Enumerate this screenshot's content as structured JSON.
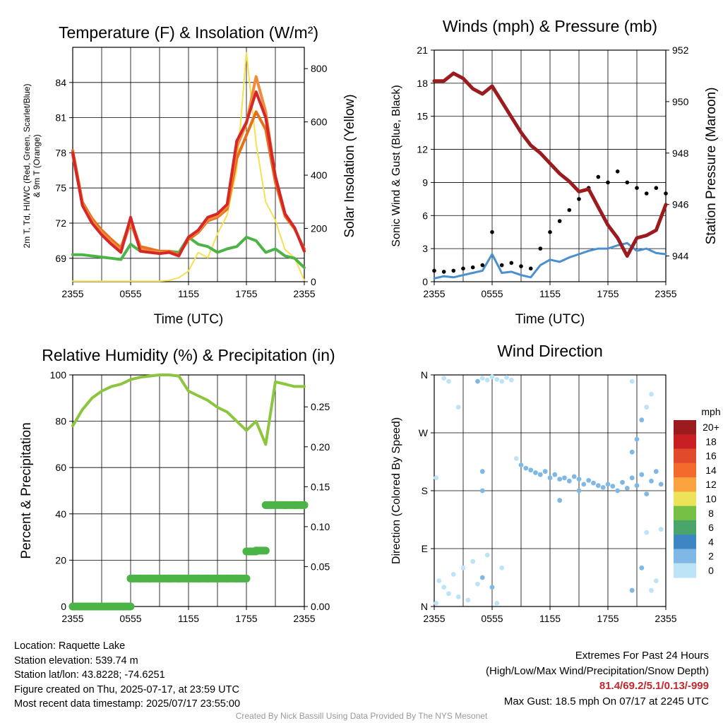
{
  "colors": {
    "temp": "#d62728",
    "dew": "#4cb447",
    "heat_index": "#f28a3c",
    "nine_m": "#e8701a",
    "solar": "#f5e050",
    "pressure": "#9b1b1e",
    "wind": "#4a8fd0",
    "gust": "#000000",
    "rh": "#8cc63f",
    "precip": "#4cb447"
  },
  "panels": {
    "temp": {
      "title": "Temperature (F) & Insolation (W/m²)",
      "ylabel_left": "2m T, Td, HI/WC (Red, Green, Scarlet/Blue)",
      "ylabel_left2": "& 9m T (Orange)",
      "ylabel_right": "Solar Insolation (Yellow)",
      "xlabel": "Time (UTC)"
    },
    "wind": {
      "title": "Winds (mph) & Pressure (mb)",
      "ylabel_left": "Sonic Wind & Gust (Blue, Black)",
      "ylabel_right": "Station Pressure (Maroon)",
      "xlabel": "Time (UTC)"
    },
    "rh": {
      "title": "Relative Humidity (%) & Precipitation (in)",
      "ylabel_left": "Percent & Precipitation"
    },
    "dir": {
      "title": "Wind Direction",
      "ylabel_left": "Direction (Colored By Speed)"
    }
  },
  "colorbar": {
    "title": "mph",
    "labels": [
      "20+",
      "18",
      "16",
      "14",
      "12",
      "10",
      "8",
      "6",
      "4",
      "2",
      "0"
    ],
    "colors": [
      "#9b1b1e",
      "#c81f25",
      "#e04b2c",
      "#f26a2e",
      "#f9a23e",
      "#ede35a",
      "#77c046",
      "#4aa56a",
      "#3d86c4",
      "#7fb8e5",
      "#bde3f7"
    ]
  },
  "footer": {
    "location": "Location: Raquette Lake",
    "elevation": "Station elevation: 539.74 m",
    "latlon": "Station lat/lon: 43.8228; -74.6251",
    "created": "Figure created on Thu, 2025-07-17, at 23:59 UTC",
    "recent": "Most recent data timestamp: 2025/07/17 23:55:00",
    "extremes_title": "Extremes For Past 24 Hours",
    "extremes_sub": "(High/Low/Max Wind/Precipitation/Snow Depth)",
    "extremes_values": "81.4/69.2/5.1/0.13/-999",
    "max_gust": "Max Gust: 18.5 mph On 07/17 at 2245 UTC",
    "credit": "Created By Nick Bassill Using Data Provided By The NYS Mesonet"
  },
  "chart_data": [
    {
      "type": "line",
      "title": "Temperature (F) & Insolation (W/m²)",
      "xlabel": "Time (UTC)",
      "xticks": [
        "2355",
        "0555",
        "1155",
        "1755",
        "2355"
      ],
      "x": [
        0,
        1,
        2,
        3,
        4,
        5,
        6,
        7,
        8,
        9,
        10,
        11,
        12,
        13,
        14,
        15,
        16,
        17,
        18,
        19,
        20,
        21,
        22,
        23,
        24
      ],
      "xlim": [
        0,
        24
      ],
      "ylim": [
        67,
        87
      ],
      "yticks": [
        69,
        72,
        75,
        78,
        81,
        84
      ],
      "y2lim": [
        0,
        880
      ],
      "y2ticks": [
        0,
        200,
        400,
        600,
        800
      ],
      "series": [
        {
          "name": "2m T",
          "axis": "left",
          "color": "#d62728",
          "values": [
            78.0,
            73.5,
            72.0,
            71.0,
            70.2,
            69.5,
            72.5,
            69.6,
            69.5,
            69.4,
            69.5,
            69.2,
            70.8,
            71.4,
            72.5,
            72.8,
            73.6,
            79.0,
            80.6,
            83.2,
            81.0,
            76.0,
            72.8,
            71.6,
            69.6
          ]
        },
        {
          "name": "9m T",
          "axis": "left",
          "color": "#e8701a",
          "values": [
            78.2,
            73.8,
            72.4,
            71.4,
            70.6,
            69.9,
            72.3,
            70.0,
            69.8,
            69.6,
            69.6,
            69.3,
            70.6,
            71.2,
            72.2,
            72.5,
            73.2,
            77.5,
            79.5,
            81.5,
            80.0,
            75.5,
            72.6,
            71.5,
            69.8
          ]
        },
        {
          "name": "Td",
          "axis": "left",
          "color": "#4cb447",
          "values": [
            69.3,
            69.3,
            69.2,
            69.1,
            69.0,
            68.9,
            70.2,
            69.6,
            69.5,
            69.5,
            69.6,
            69.5,
            70.8,
            70.2,
            70.0,
            69.5,
            69.8,
            70.0,
            70.8,
            70.5,
            69.5,
            69.8,
            69.2,
            69.0,
            68.2
          ]
        },
        {
          "name": "HI",
          "axis": "left",
          "color": "#f28a3c",
          "values": [
            77.8,
            73.6,
            72.2,
            71.2,
            70.4,
            69.7,
            72.0,
            69.8,
            69.6,
            69.5,
            69.5,
            69.2,
            70.8,
            71.3,
            72.3,
            72.6,
            73.4,
            78.5,
            80.5,
            84.5,
            81.5,
            76.0,
            72.8,
            71.6,
            69.6
          ]
        },
        {
          "name": "Solar",
          "axis": "right",
          "color": "#f5e050",
          "values": [
            2,
            2,
            2,
            2,
            2,
            2,
            2,
            2,
            2,
            2,
            5,
            15,
            40,
            110,
            90,
            180,
            250,
            420,
            860,
            520,
            300,
            230,
            120,
            90,
            5
          ]
        }
      ]
    },
    {
      "type": "line",
      "title": "Winds (mph) & Pressure (mb)",
      "xlabel": "Time (UTC)",
      "xticks": [
        "2355",
        "0555",
        "1155",
        "1755",
        "2355"
      ],
      "x": [
        0,
        1,
        2,
        3,
        4,
        5,
        6,
        7,
        8,
        9,
        10,
        11,
        12,
        13,
        14,
        15,
        16,
        17,
        18,
        19,
        20,
        21,
        22,
        23,
        24
      ],
      "xlim": [
        0,
        24
      ],
      "ylim": [
        0,
        21
      ],
      "yticks": [
        0,
        3,
        6,
        9,
        12,
        15,
        18,
        21
      ],
      "y2lim": [
        943.0,
        952.0
      ],
      "y2ticks": [
        944,
        946,
        948,
        950,
        952
      ],
      "series": [
        {
          "name": "Sonic Wind",
          "axis": "left",
          "color": "#4a8fd0",
          "values": [
            0.3,
            0.5,
            0.4,
            0.6,
            0.8,
            1.0,
            2.5,
            0.8,
            0.9,
            0.6,
            0.4,
            1.5,
            2.0,
            1.8,
            2.2,
            2.5,
            2.8,
            3.0,
            3.0,
            3.3,
            3.5,
            2.8,
            3.0,
            2.6,
            2.5
          ]
        },
        {
          "name": "Gust",
          "axis": "left",
          "color": "#000000",
          "marker": "dot",
          "values": [
            1.0,
            0.9,
            1.0,
            1.2,
            1.3,
            1.5,
            4.5,
            1.5,
            1.7,
            1.4,
            1.2,
            3.0,
            4.5,
            5.5,
            6.5,
            7.5,
            8.5,
            9.5,
            9.0,
            10.0,
            9.0,
            8.5,
            8.0,
            8.5,
            8.0
          ]
        },
        {
          "name": "Station Pressure",
          "axis": "right",
          "color": "#9b1b1e",
          "values": [
            950.8,
            950.8,
            951.1,
            950.9,
            950.5,
            950.3,
            950.6,
            950.0,
            949.4,
            948.8,
            948.3,
            948.0,
            947.6,
            947.2,
            946.9,
            946.5,
            946.6,
            945.9,
            945.2,
            944.7,
            944.0,
            944.7,
            944.8,
            945.0,
            946.0
          ]
        }
      ]
    },
    {
      "type": "line",
      "title": "Relative Humidity (%) & Precipitation (in)",
      "xticks": [
        "2355",
        "0555",
        "1155",
        "1755",
        "2355"
      ],
      "x": [
        0,
        1,
        2,
        3,
        4,
        5,
        6,
        7,
        8,
        9,
        10,
        11,
        12,
        13,
        14,
        15,
        16,
        17,
        18,
        19,
        20,
        21,
        22,
        23,
        24
      ],
      "xlim": [
        0,
        24
      ],
      "ylim": [
        0,
        100
      ],
      "yticks": [
        0,
        20,
        40,
        60,
        80,
        100
      ],
      "y2lim": [
        0,
        0.29
      ],
      "y2ticks": [
        0.0,
        0.05,
        0.1,
        0.15,
        0.2,
        0.25
      ],
      "y2ticklabels": [
        "0.00",
        "0.05",
        "0.10",
        "0.15",
        "0.20",
        "0.25"
      ],
      "series": [
        {
          "name": "RH",
          "axis": "left",
          "color": "#8cc63f",
          "values": [
            78,
            85,
            90,
            93,
            95,
            96,
            98,
            99,
            99.5,
            100,
            100,
            99.5,
            93,
            91,
            89,
            86,
            84,
            80,
            76,
            80,
            70,
            97,
            96,
            95,
            95
          ]
        },
        {
          "name": "Precipitation",
          "axis": "right",
          "color": "#4cb447",
          "marker": "dot",
          "values": [
            0.0,
            0.0,
            0.0,
            0.0,
            0.0,
            0.0,
            0.035,
            0.035,
            0.035,
            0.035,
            0.035,
            0.035,
            0.035,
            0.035,
            0.035,
            0.035,
            0.035,
            0.035,
            0.069,
            0.07,
            0.127,
            0.127,
            0.127,
            0.127,
            0.127
          ]
        }
      ]
    },
    {
      "type": "scatter",
      "title": "Wind Direction",
      "xticks": [
        "2355",
        "0555",
        "1155",
        "1755",
        "2355"
      ],
      "xlim": [
        0,
        24
      ],
      "ylim": [
        0,
        360
      ],
      "yticks": [
        "N",
        "E",
        "S",
        "W",
        "N"
      ],
      "points": [
        {
          "x": 0.2,
          "dir": 5,
          "speed": 1
        },
        {
          "x": 0.5,
          "dir": 40,
          "speed": 1
        },
        {
          "x": 1.0,
          "dir": 30,
          "speed": 1
        },
        {
          "x": 1.5,
          "dir": 20,
          "speed": 1
        },
        {
          "x": 2.0,
          "dir": 50,
          "speed": 1
        },
        {
          "x": 2.5,
          "dir": 15,
          "speed": 1
        },
        {
          "x": 3.0,
          "dir": 60,
          "speed": 1
        },
        {
          "x": 3.5,
          "dir": 10,
          "speed": 1
        },
        {
          "x": 4.0,
          "dir": 70,
          "speed": 1
        },
        {
          "x": 4.5,
          "dir": 35,
          "speed": 1
        },
        {
          "x": 5.0,
          "dir": 45,
          "speed": 2
        },
        {
          "x": 5.5,
          "dir": 80,
          "speed": 1
        },
        {
          "x": 6.0,
          "dir": 30,
          "speed": 2
        },
        {
          "x": 6.5,
          "dir": 5,
          "speed": 1
        },
        {
          "x": 7.0,
          "dir": 60,
          "speed": 1
        },
        {
          "x": 1.0,
          "dir": 355,
          "speed": 1
        },
        {
          "x": 1.5,
          "dir": 350,
          "speed": 1
        },
        {
          "x": 2.5,
          "dir": 310,
          "speed": 1
        },
        {
          "x": 4.5,
          "dir": 350,
          "speed": 3
        },
        {
          "x": 5.0,
          "dir": 355,
          "speed": 1
        },
        {
          "x": 5.5,
          "dir": 352,
          "speed": 1
        },
        {
          "x": 6.0,
          "dir": 357,
          "speed": 1
        },
        {
          "x": 6.5,
          "dir": 353,
          "speed": 1
        },
        {
          "x": 7.0,
          "dir": 350,
          "speed": 1
        },
        {
          "x": 7.5,
          "dir": 356,
          "speed": 1
        },
        {
          "x": 8.0,
          "dir": 352,
          "speed": 1
        },
        {
          "x": 5.0,
          "dir": 210,
          "speed": 3
        },
        {
          "x": 5.0,
          "dir": 180,
          "speed": 2
        },
        {
          "x": 0.2,
          "dir": 200,
          "speed": 1
        },
        {
          "x": 8.5,
          "dir": 230,
          "speed": 1
        },
        {
          "x": 9.0,
          "dir": 220,
          "speed": 2
        },
        {
          "x": 9.5,
          "dir": 215,
          "speed": 2
        },
        {
          "x": 10.0,
          "dir": 212,
          "speed": 3
        },
        {
          "x": 10.5,
          "dir": 208,
          "speed": 2
        },
        {
          "x": 11.0,
          "dir": 205,
          "speed": 2
        },
        {
          "x": 11.5,
          "dir": 210,
          "speed": 3
        },
        {
          "x": 12.0,
          "dir": 200,
          "speed": 2
        },
        {
          "x": 12.5,
          "dir": 205,
          "speed": 3
        },
        {
          "x": 13.0,
          "dir": 198,
          "speed": 2
        },
        {
          "x": 13.5,
          "dir": 200,
          "speed": 3
        },
        {
          "x": 14.0,
          "dir": 195,
          "speed": 2
        },
        {
          "x": 14.5,
          "dir": 202,
          "speed": 3
        },
        {
          "x": 15.0,
          "dir": 198,
          "speed": 2
        },
        {
          "x": 15.5,
          "dir": 190,
          "speed": 3
        },
        {
          "x": 16.0,
          "dir": 196,
          "speed": 2
        },
        {
          "x": 16.5,
          "dir": 192,
          "speed": 3
        },
        {
          "x": 17.0,
          "dir": 188,
          "speed": 2
        },
        {
          "x": 17.5,
          "dir": 185,
          "speed": 3
        },
        {
          "x": 18.0,
          "dir": 190,
          "speed": 2
        },
        {
          "x": 18.5,
          "dir": 187,
          "speed": 3
        },
        {
          "x": 19.0,
          "dir": 180,
          "speed": 2
        },
        {
          "x": 19.5,
          "dir": 193,
          "speed": 3
        },
        {
          "x": 20.0,
          "dir": 184,
          "speed": 2
        },
        {
          "x": 20.5,
          "dir": 200,
          "speed": 3
        },
        {
          "x": 21.0,
          "dir": 188,
          "speed": 2
        },
        {
          "x": 21.5,
          "dir": 205,
          "speed": 2
        },
        {
          "x": 22.0,
          "dir": 175,
          "speed": 2
        },
        {
          "x": 22.5,
          "dir": 195,
          "speed": 2
        },
        {
          "x": 23.0,
          "dir": 210,
          "speed": 2
        },
        {
          "x": 23.5,
          "dir": 190,
          "speed": 2
        },
        {
          "x": 13.0,
          "dir": 165,
          "speed": 2
        },
        {
          "x": 15.0,
          "dir": 180,
          "speed": 3
        },
        {
          "x": 20.5,
          "dir": 240,
          "speed": 3
        },
        {
          "x": 21.0,
          "dir": 260,
          "speed": 2
        },
        {
          "x": 21.5,
          "dir": 290,
          "speed": 2
        },
        {
          "x": 22.0,
          "dir": 310,
          "speed": 1
        },
        {
          "x": 22.5,
          "dir": 330,
          "speed": 1
        },
        {
          "x": 20.5,
          "dir": 350,
          "speed": 1
        },
        {
          "x": 20.5,
          "dir": 25,
          "speed": 3
        },
        {
          "x": 21.5,
          "dir": 60,
          "speed": 2
        },
        {
          "x": 22.5,
          "dir": 25,
          "speed": 1
        },
        {
          "x": 23.0,
          "dir": 40,
          "speed": 1
        },
        {
          "x": 23.5,
          "dir": 120,
          "speed": 1
        },
        {
          "x": 22.0,
          "dir": 115,
          "speed": 1
        }
      ]
    }
  ]
}
